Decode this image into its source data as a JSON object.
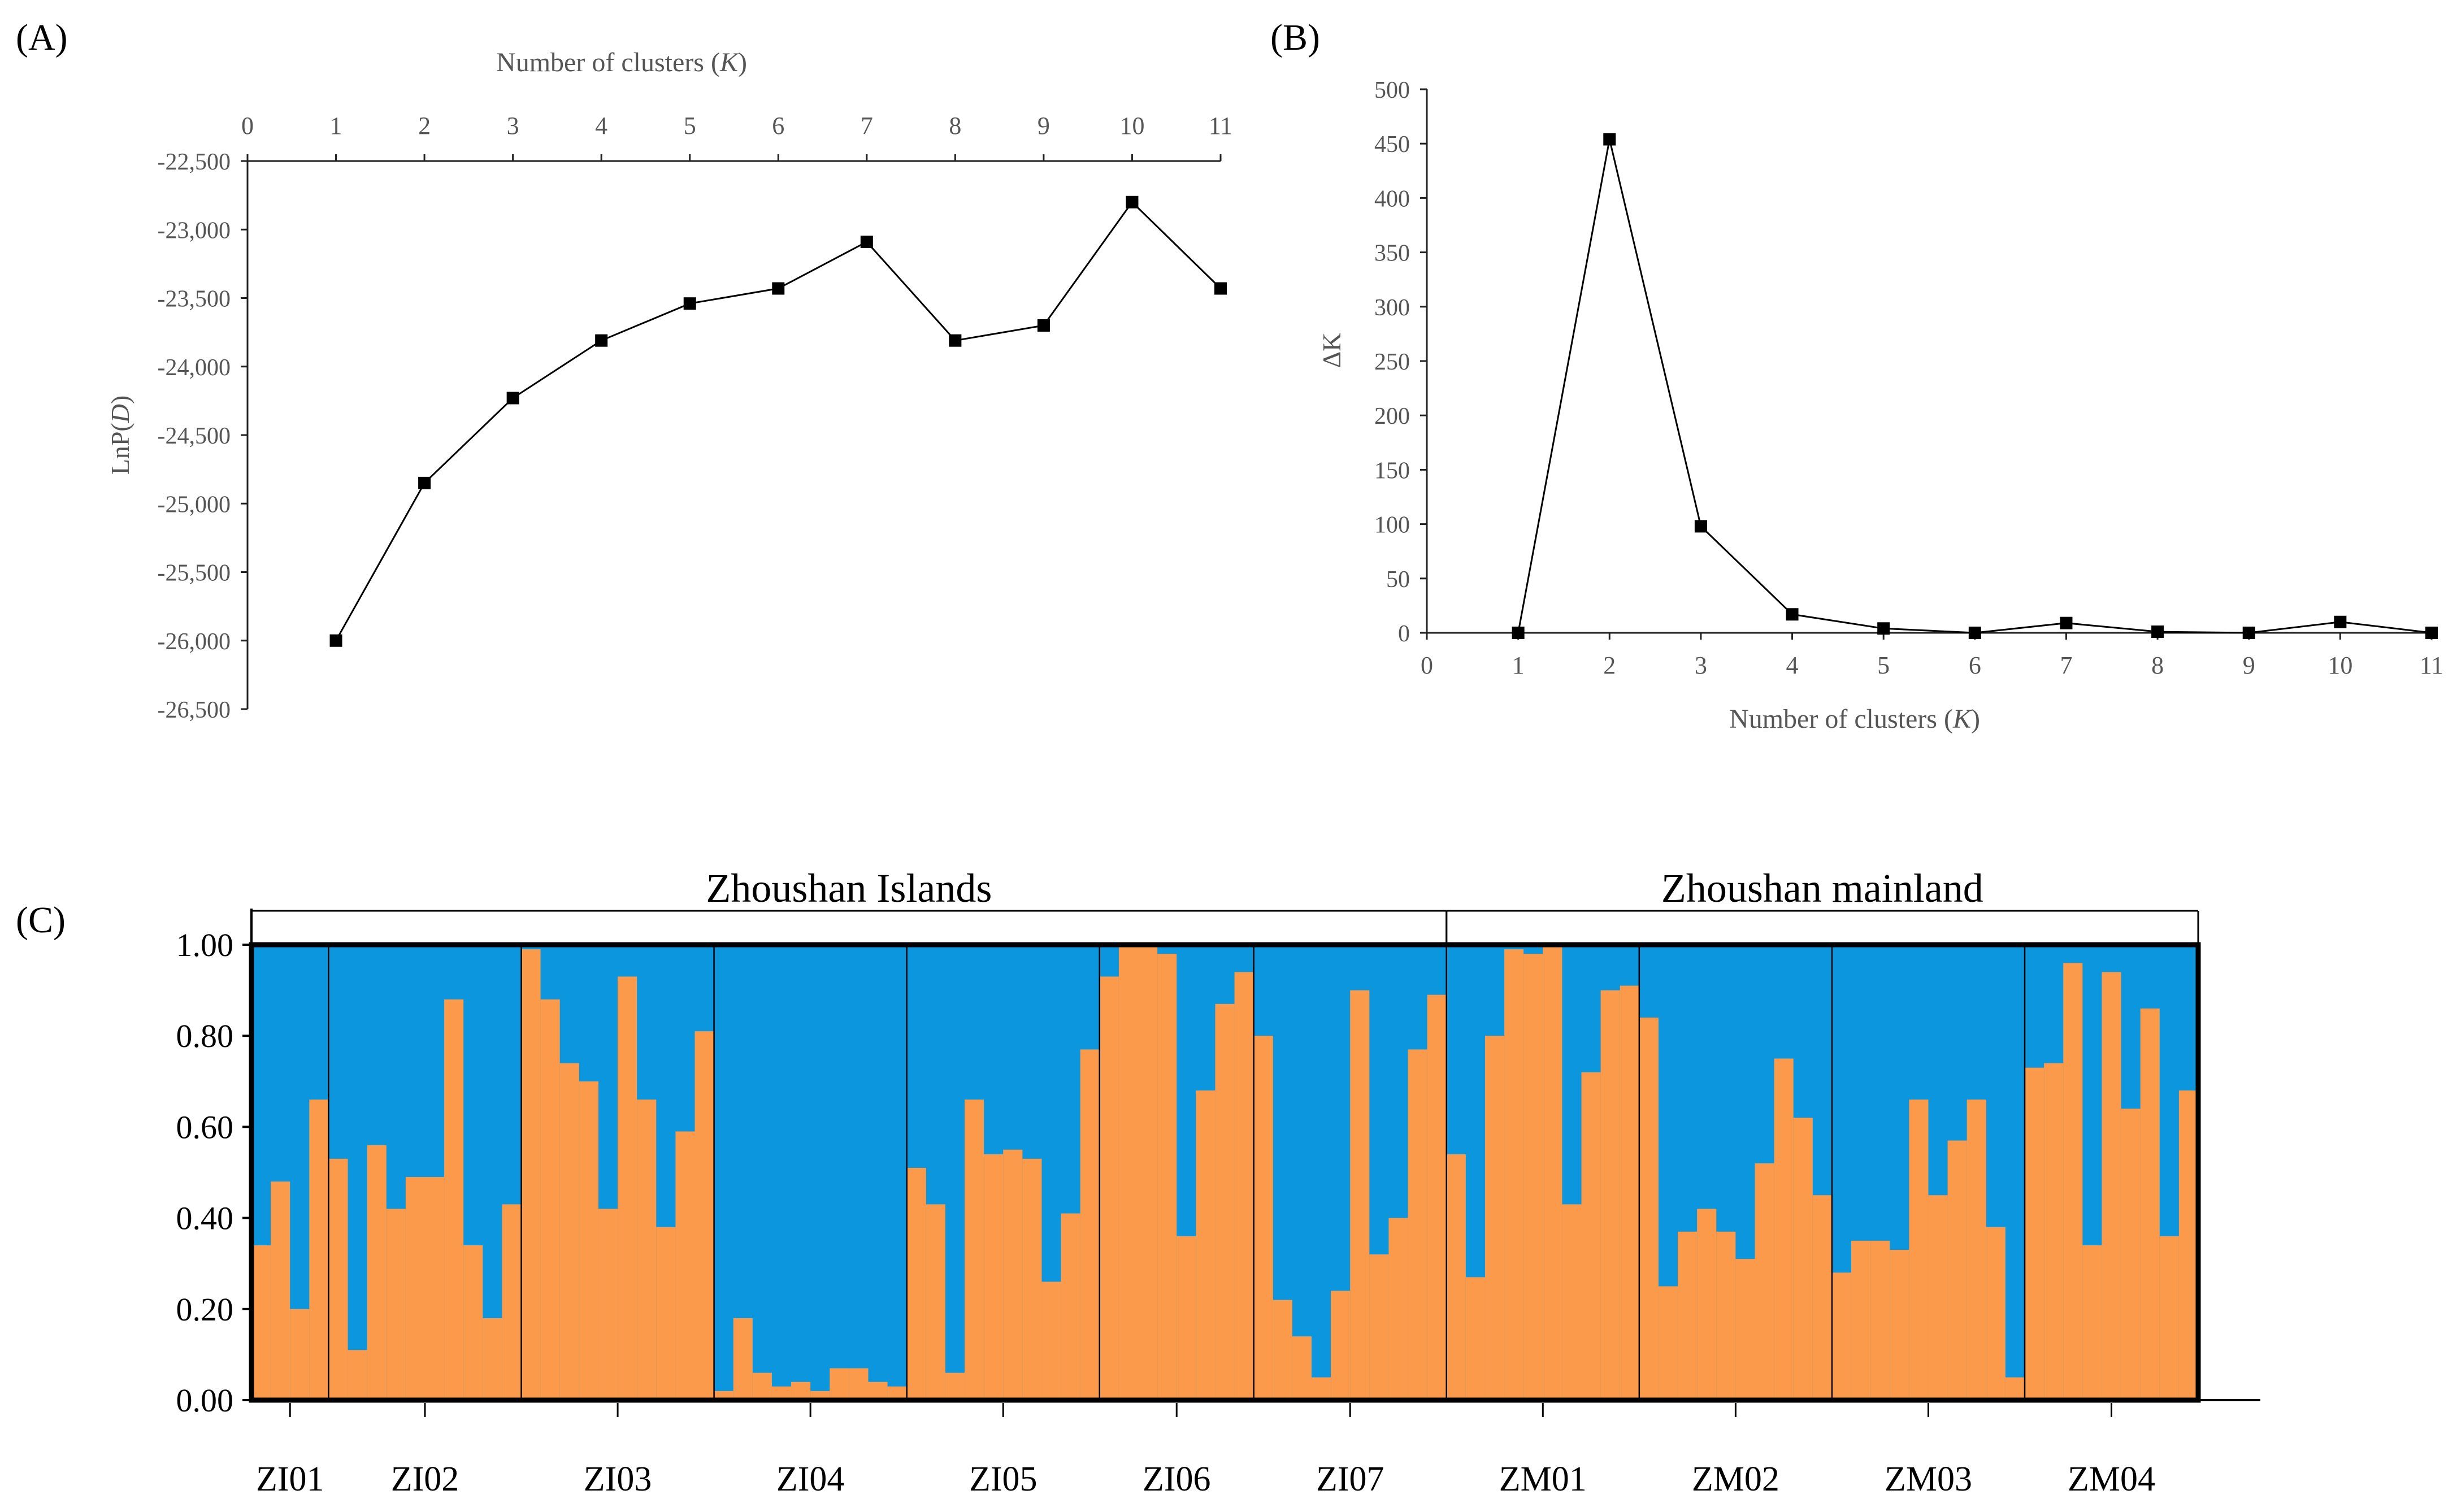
{
  "chart_data": [
    {
      "panel_label": "(A)",
      "type": "line",
      "xlabel_prefix": "Number of clusters (",
      "xlabel_var": "K",
      "xlabel_suffix": ")",
      "ylabel_prefix": "LnP(",
      "ylabel_var": "D",
      "ylabel_suffix": ")",
      "xlim": [
        0,
        11
      ],
      "ylim": [
        -26500,
        -22500
      ],
      "x_ticks": [
        0,
        1,
        2,
        3,
        4,
        5,
        6,
        7,
        8,
        9,
        10,
        11
      ],
      "y_ticks": [
        -22500,
        -23000,
        -23500,
        -24000,
        -24500,
        -25000,
        -25500,
        -26000,
        -26500
      ],
      "y_tick_labels": [
        "-22,500",
        "-23,000",
        "-23,500",
        "-24,000",
        "-24,500",
        "-25,000",
        "-25,500",
        "-26,000",
        "-26,500"
      ],
      "x": [
        1,
        2,
        3,
        4,
        5,
        6,
        7,
        8,
        9,
        10,
        11
      ],
      "y": [
        -26000,
        -24850,
        -24230,
        -23810,
        -23540,
        -23430,
        -23090,
        -23810,
        -23700,
        -22800,
        -23430
      ]
    },
    {
      "panel_label": "(B)",
      "type": "line",
      "xlabel_prefix": "Number of clusters (",
      "xlabel_var": "K",
      "xlabel_suffix": ")",
      "ylabel": "ΔK",
      "xlim": [
        0,
        11
      ],
      "ylim": [
        0,
        500
      ],
      "x_ticks": [
        0,
        1,
        2,
        3,
        4,
        5,
        6,
        7,
        8,
        9,
        10,
        11
      ],
      "y_ticks": [
        0,
        50,
        100,
        150,
        200,
        250,
        300,
        350,
        400,
        450,
        500
      ],
      "x": [
        1,
        2,
        3,
        4,
        5,
        6,
        7,
        8,
        9,
        10,
        11
      ],
      "y": [
        0,
        454,
        98,
        17,
        4,
        0,
        9,
        1,
        0,
        10,
        0
      ]
    },
    {
      "panel_label": "(C)",
      "type": "bar",
      "stacked": true,
      "ylim": [
        0,
        1
      ],
      "y_ticks": [
        0,
        0.2,
        0.4,
        0.6,
        0.8,
        1.0
      ],
      "y_tick_labels": [
        "0.00",
        "0.20",
        "0.40",
        "0.60",
        "0.80",
        "1.00"
      ],
      "colors": {
        "cluster1": "#fb9a4b",
        "cluster2": "#0b96de"
      },
      "regions": [
        {
          "label": "Zhoushan Islands",
          "populations": [
            "ZI01",
            "ZI02",
            "ZI03",
            "ZI04",
            "ZI05",
            "ZI06",
            "ZI07"
          ]
        },
        {
          "label": "Zhoushan mainland",
          "populations": [
            "ZM01",
            "ZM02",
            "ZM03",
            "ZM04"
          ]
        }
      ],
      "populations": [
        {
          "name": "ZI01",
          "values": [
            0.34,
            0.48,
            0.2,
            0.66
          ]
        },
        {
          "name": "ZI02",
          "values": [
            0.53,
            0.11,
            0.56,
            0.42,
            0.49,
            0.49,
            0.88,
            0.34,
            0.18,
            0.43
          ]
        },
        {
          "name": "ZI03",
          "values": [
            0.99,
            0.88,
            0.74,
            0.7,
            0.42,
            0.93,
            0.66,
            0.38,
            0.59,
            0.81
          ]
        },
        {
          "name": "ZI04",
          "values": [
            0.02,
            0.18,
            0.06,
            0.03,
            0.04,
            0.02,
            0.07,
            0.07,
            0.04,
            0.03
          ]
        },
        {
          "name": "ZI05",
          "values": [
            0.51,
            0.43,
            0.06,
            0.66,
            0.54,
            0.55,
            0.53,
            0.26,
            0.41,
            0.77
          ]
        },
        {
          "name": "ZI06",
          "values": [
            0.93,
            1.0,
            1.0,
            0.98,
            0.36,
            0.68,
            0.87,
            0.94
          ]
        },
        {
          "name": "ZI07",
          "values": [
            0.8,
            0.22,
            0.14,
            0.05,
            0.24,
            0.9,
            0.32,
            0.4,
            0.77,
            0.89
          ]
        },
        {
          "name": "ZM01",
          "values": [
            0.54,
            0.27,
            0.8,
            0.99,
            0.98,
            1.0,
            0.43,
            0.72,
            0.9,
            0.91
          ]
        },
        {
          "name": "ZM02",
          "values": [
            0.84,
            0.25,
            0.37,
            0.42,
            0.37,
            0.31,
            0.52,
            0.75,
            0.62,
            0.45
          ]
        },
        {
          "name": "ZM03",
          "values": [
            0.28,
            0.35,
            0.35,
            0.33,
            0.66,
            0.45,
            0.57,
            0.66,
            0.38,
            0.05
          ]
        },
        {
          "name": "ZM04",
          "values": [
            0.73,
            0.74,
            0.96,
            0.34,
            0.94,
            0.64,
            0.86,
            0.36,
            0.68
          ]
        }
      ]
    }
  ]
}
